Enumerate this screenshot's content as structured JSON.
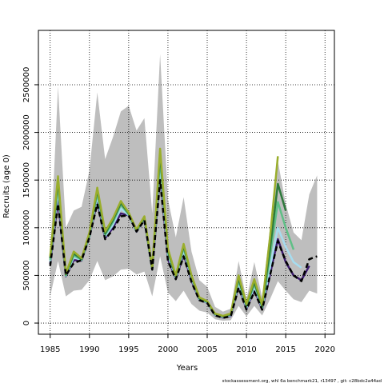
{
  "chart_data": {
    "type": "line",
    "y_label": "Recruits (age 0)",
    "x_label": "Years",
    "footnote": "stockassessment.org, whl 6a benchmark21, r13497 , git: c28bdc2a44ad",
    "x": [
      1985,
      1986,
      1987,
      1988,
      1989,
      1990,
      1991,
      1992,
      1993,
      1994,
      1995,
      1996,
      1997,
      1998,
      1999,
      2000,
      2001,
      2002,
      2003,
      2004,
      2005,
      2006,
      2007,
      2008,
      2009,
      2010,
      2011,
      2012,
      2013,
      2014,
      2015,
      2016,
      2017,
      2018,
      2019
    ],
    "band": {
      "color": "#bebebe",
      "upper": [
        700000,
        2480000,
        1000000,
        1180000,
        1220000,
        1600000,
        2420000,
        1720000,
        1950000,
        2220000,
        2280000,
        2020000,
        2150000,
        1150000,
        2820000,
        1300000,
        900000,
        1320000,
        750000,
        450000,
        380000,
        170000,
        120000,
        150000,
        650000,
        250000,
        640000,
        270000,
        1000000,
        1700000,
        1250000,
        950000,
        870000,
        1350000,
        1550000
      ],
      "lower": [
        280000,
        650000,
        280000,
        340000,
        350000,
        450000,
        650000,
        450000,
        490000,
        560000,
        570000,
        510000,
        540000,
        280000,
        700000,
        320000,
        230000,
        340000,
        200000,
        130000,
        110000,
        40000,
        25000,
        30000,
        180000,
        70000,
        180000,
        80000,
        250000,
        440000,
        340000,
        250000,
        220000,
        340000,
        310000
      ]
    },
    "series": [
      {
        "color": "#3b1a6e",
        "dashed": false,
        "values": [
          620000,
          1300000,
          490000,
          660000,
          655000,
          905000,
          1280000,
          890000,
          1000000,
          1150000,
          1130000,
          958000,
          1085000,
          560000,
          1560000,
          670000,
          465000,
          720000,
          445000,
          245000,
          212000,
          84000,
          58000,
          75000,
          390000,
          148000,
          350000,
          145000,
          510000,
          880000,
          640000,
          500000,
          450000,
          600000,
          null
        ]
      },
      {
        "color": "#a6dcef",
        "dashed": false,
        "values": [
          640000,
          1400000,
          495000,
          690000,
          660000,
          910000,
          1330000,
          910000,
          1030000,
          1200000,
          1130000,
          960000,
          1090000,
          560000,
          1650000,
          710000,
          475000,
          760000,
          465000,
          250000,
          215000,
          88000,
          63000,
          82000,
          420000,
          160000,
          380000,
          155000,
          580000,
          1000000,
          800000,
          640000,
          580000,
          null,
          null
        ]
      },
      {
        "color": "#5fbf86",
        "dashed": false,
        "values": [
          660000,
          1460000,
          500000,
          710000,
          665000,
          920000,
          1370000,
          925000,
          1060000,
          1240000,
          1140000,
          965000,
          1100000,
          565000,
          1720000,
          740000,
          485000,
          790000,
          480000,
          255000,
          220000,
          92000,
          68000,
          90000,
          450000,
          175000,
          410000,
          165000,
          700000,
          1270000,
          1000000,
          770000,
          null,
          null,
          null
        ]
      },
      {
        "color": "#2e7a3c",
        "dashed": false,
        "values": [
          680000,
          1500000,
          510000,
          730000,
          670000,
          930000,
          1400000,
          940000,
          1080000,
          1260000,
          1150000,
          970000,
          1110000,
          570000,
          1780000,
          760000,
          490000,
          810000,
          490000,
          260000,
          225000,
          95000,
          70000,
          95000,
          470000,
          185000,
          430000,
          175000,
          780000,
          1460000,
          1180000,
          null,
          null,
          null,
          null
        ]
      },
      {
        "color": "#9aae2c",
        "dashed": false,
        "values": [
          700000,
          1540000,
          520000,
          750000,
          680000,
          950000,
          1420000,
          960000,
          1100000,
          1280000,
          1160000,
          980000,
          1120000,
          580000,
          1830000,
          780000,
          500000,
          830000,
          500000,
          270000,
          230000,
          100000,
          75000,
          100000,
          500000,
          200000,
          460000,
          190000,
          900000,
          1750000,
          null,
          null,
          null,
          null,
          null
        ]
      },
      {
        "color": "#000000",
        "dashed": true,
        "values": [
          600000,
          1250000,
          500000,
          630000,
          660000,
          900000,
          1250000,
          880000,
          980000,
          1120000,
          1130000,
          960000,
          1080000,
          560000,
          1500000,
          650000,
          460000,
          700000,
          430000,
          240000,
          210000,
          80000,
          55000,
          70000,
          370000,
          140000,
          330000,
          140000,
          500000,
          860000,
          650000,
          500000,
          440000,
          670000,
          700000
        ]
      }
    ],
    "xlim": [
      1983.5,
      2021.2
    ],
    "ylim": [
      -117000,
      3070000
    ],
    "xticks": [
      1985,
      1990,
      1995,
      2000,
      2005,
      2010,
      2015,
      2020
    ],
    "yticks": [
      0,
      500000,
      1000000,
      1500000,
      2000000,
      2500000
    ],
    "grid": true
  }
}
